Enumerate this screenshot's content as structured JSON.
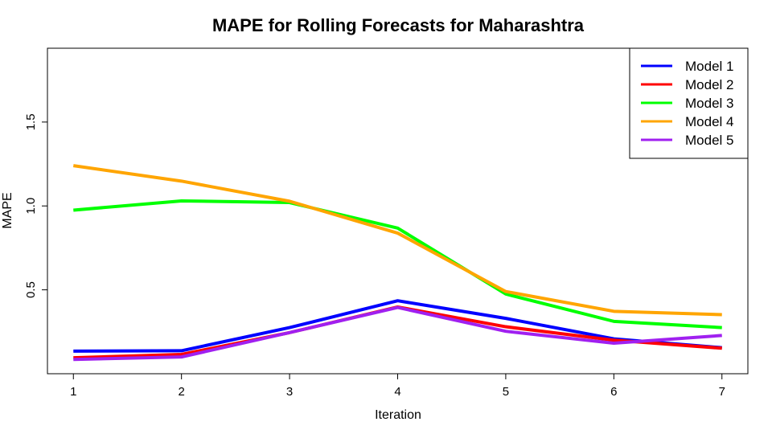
{
  "chart_data": {
    "type": "line",
    "title": "MAPE for Rolling Forecasts for Maharashtra",
    "xlabel": "Iteration",
    "ylabel": "MAPE",
    "x": [
      1,
      2,
      3,
      4,
      5,
      6,
      7
    ],
    "xlim": [
      0.76,
      7.24
    ],
    "ylim": [
      0.0,
      1.94
    ],
    "yticks": [
      0.5,
      1.0,
      1.5
    ],
    "ytick_labels": [
      "0.5",
      "1.0",
      "1.5"
    ],
    "xticks": [
      1,
      2,
      3,
      4,
      5,
      6,
      7
    ],
    "xtick_labels": [
      "1",
      "2",
      "3",
      "4",
      "5",
      "6",
      "7"
    ],
    "legend_position": "top-right",
    "series": [
      {
        "name": "Model 1",
        "color": "#0000ff",
        "values": [
          0.135,
          0.137,
          0.275,
          0.435,
          0.33,
          0.208,
          0.155
        ]
      },
      {
        "name": "Model 2",
        "color": "#ff0000",
        "values": [
          0.095,
          0.115,
          0.245,
          0.398,
          0.28,
          0.2,
          0.152
        ]
      },
      {
        "name": "Model 3",
        "color": "#00ff00",
        "values": [
          0.975,
          1.03,
          1.02,
          0.868,
          0.475,
          0.312,
          0.275
        ]
      },
      {
        "name": "Model 4",
        "color": "#ffa500",
        "values": [
          1.24,
          1.148,
          1.028,
          0.838,
          0.49,
          0.372,
          0.352
        ]
      },
      {
        "name": "Model 5",
        "color": "#a020f0",
        "values": [
          0.085,
          0.1,
          0.245,
          0.395,
          0.253,
          0.182,
          0.228
        ]
      }
    ]
  }
}
